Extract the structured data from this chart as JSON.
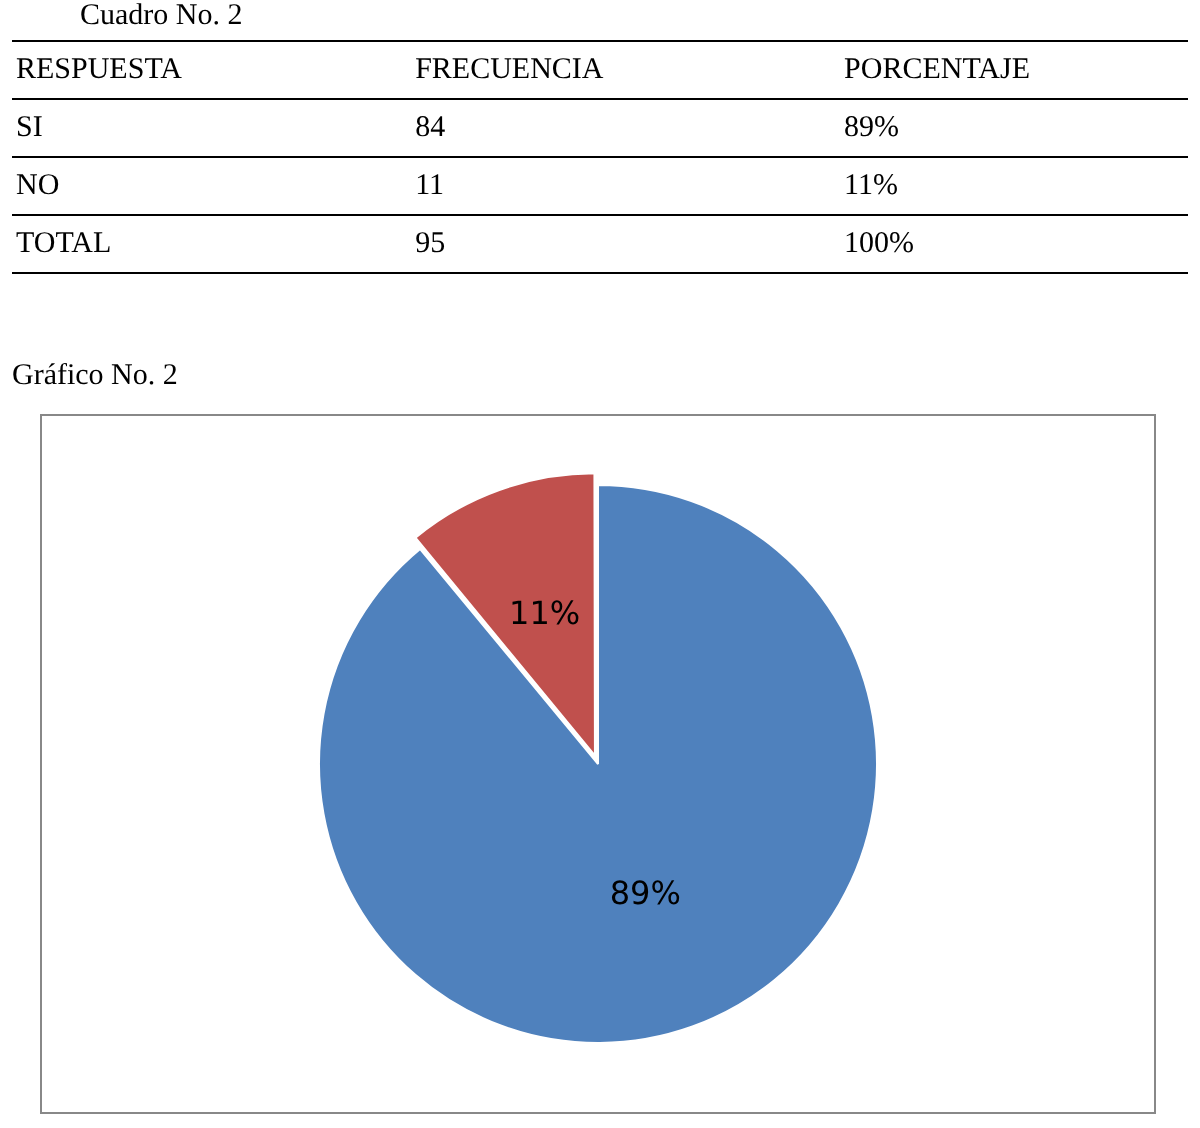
{
  "chart_data": {
    "type": "pie",
    "title": "Gráfico No. 2",
    "categories": [
      null,
      null
    ],
    "values": [
      89,
      11
    ],
    "colors": [
      "#4f81bd",
      "#c0504d"
    ],
    "value_labels": [
      "89%",
      "11%"
    ],
    "annotations": [
      "Cuadro No. 2",
      "RESPUESTA",
      "FRECUENCIA",
      "PORCENTAJE",
      "SI",
      "84",
      "NO",
      "11",
      "TOTAL",
      "95",
      "100%"
    ]
  }
}
